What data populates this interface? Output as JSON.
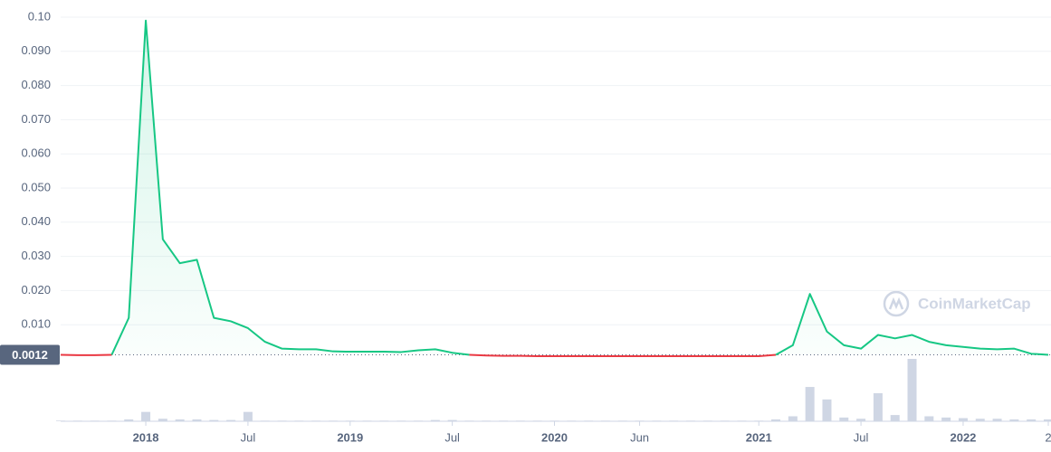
{
  "chart_data": {
    "type": "line",
    "watermark": "CoinMarketCap",
    "x": [
      "2017-08",
      "2017-09",
      "2017-10",
      "2017-11",
      "2017-12",
      "2018-01",
      "2018-02",
      "2018-03",
      "2018-04",
      "2018-05",
      "2018-06",
      "2018-07",
      "2018-08",
      "2018-09",
      "2018-10",
      "2018-11",
      "2018-12",
      "2019-01",
      "2019-02",
      "2019-03",
      "2019-04",
      "2019-05",
      "2019-06",
      "2019-07",
      "2019-08",
      "2019-09",
      "2019-10",
      "2019-11",
      "2019-12",
      "2020-01",
      "2020-02",
      "2020-03",
      "2020-04",
      "2020-05",
      "2020-06",
      "2020-07",
      "2020-08",
      "2020-09",
      "2020-10",
      "2020-11",
      "2020-12",
      "2021-01",
      "2021-02",
      "2021-03",
      "2021-04",
      "2021-05",
      "2021-06",
      "2021-07",
      "2021-08",
      "2021-09",
      "2021-10",
      "2021-11",
      "2021-12",
      "2022-01",
      "2022-02",
      "2022-03",
      "2022-04",
      "2022-05",
      "2022-06"
    ],
    "values": [
      0.0012,
      0.0011,
      0.0011,
      0.0012,
      0.012,
      0.099,
      0.035,
      0.028,
      0.029,
      0.012,
      0.011,
      0.009,
      0.005,
      0.003,
      0.0028,
      0.0028,
      0.0022,
      0.0021,
      0.0021,
      0.0021,
      0.002,
      0.0025,
      0.0028,
      0.0018,
      0.0012,
      0.001,
      0.0009,
      0.0009,
      0.0008,
      0.0008,
      0.0008,
      0.0008,
      0.0008,
      0.0008,
      0.0008,
      0.0008,
      0.0008,
      0.0008,
      0.0008,
      0.0008,
      0.0008,
      0.0008,
      0.0012,
      0.004,
      0.019,
      0.008,
      0.004,
      0.003,
      0.007,
      0.006,
      0.007,
      0.005,
      0.004,
      0.0035,
      0.003,
      0.0028,
      0.003,
      0.0015,
      0.0012
    ],
    "volume": [
      1,
      1,
      1,
      1,
      3,
      15,
      4,
      3,
      3,
      2,
      2,
      15,
      1,
      1,
      1,
      1,
      1,
      1,
      1,
      1,
      1,
      1,
      2,
      2,
      1,
      1,
      1,
      1,
      1,
      1,
      1,
      1,
      1,
      1,
      1,
      1,
      1,
      1,
      1,
      1,
      1,
      1,
      3,
      8,
      55,
      35,
      6,
      4,
      45,
      10,
      100,
      8,
      6,
      5,
      4,
      4,
      3,
      3,
      3
    ],
    "volume_lim": [
      0,
      100
    ],
    "reference": {
      "value": 0.0012,
      "label": "0.0012"
    },
    "up_color": "#16c784",
    "down_color": "#ea3943",
    "volume_color": "#cfd6e4",
    "xlim": [
      "2017-08",
      "2022-06"
    ],
    "xticks": [
      {
        "value": "2018-01",
        "label": "2018"
      },
      {
        "value": "2018-07",
        "label": "Jul"
      },
      {
        "value": "2019-01",
        "label": "2019"
      },
      {
        "value": "2019-07",
        "label": "Jul"
      },
      {
        "value": "2020-01",
        "label": "2020"
      },
      {
        "value": "2020-06",
        "label": "Jun"
      },
      {
        "value": "2021-01",
        "label": "2021"
      },
      {
        "value": "2021-07",
        "label": "Jul"
      },
      {
        "value": "2022-01",
        "label": "2022"
      },
      {
        "value": "2022-06",
        "label": "2"
      }
    ],
    "ylim": [
      0,
      0.1
    ],
    "yticks": [
      {
        "value": 0.01,
        "label": "0.010"
      },
      {
        "value": 0.02,
        "label": "0.020"
      },
      {
        "value": 0.03,
        "label": "0.030"
      },
      {
        "value": 0.04,
        "label": "0.040"
      },
      {
        "value": 0.05,
        "label": "0.050"
      },
      {
        "value": 0.06,
        "label": "0.060"
      },
      {
        "value": 0.07,
        "label": "0.070"
      },
      {
        "value": 0.08,
        "label": "0.080"
      },
      {
        "value": 0.09,
        "label": "0.090"
      },
      {
        "value": 0.1,
        "label": "0.10"
      }
    ],
    "grid": true
  }
}
